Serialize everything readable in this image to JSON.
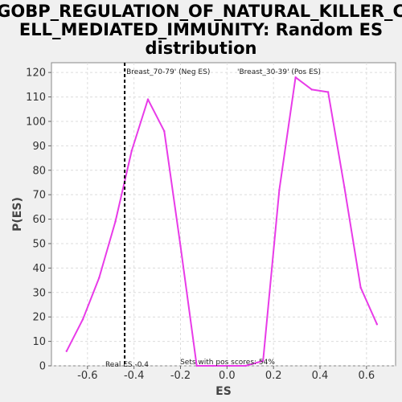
{
  "chart_data": {
    "type": "line",
    "title": "GOBP_REGULATION_OF_NATURAL_KILLER_CELL_MEDIATED_IMMUNITY: Random ES distribution",
    "title_lines": [
      "GOBP_REGULATION_OF_NATURAL_KILLER_C",
      "ELL_MEDIATED_IMMUNITY: Random ES",
      "distribution"
    ],
    "xlabel": "ES",
    "ylabel": "P(ES)",
    "xlim": [
      -0.755,
      0.725
    ],
    "ylim": [
      0,
      124
    ],
    "xticks": [
      -0.6,
      -0.4,
      -0.2,
      0.0,
      0.2,
      0.4,
      0.6
    ],
    "xtick_labels": [
      "-0.6",
      "-0.4",
      "-0.2",
      "0.0",
      "0.2",
      "0.4",
      "0.6"
    ],
    "yticks": [
      0,
      10,
      20,
      30,
      40,
      50,
      60,
      70,
      80,
      90,
      100,
      110,
      120
    ],
    "ytick_labels": [
      "0",
      "10",
      "20",
      "30",
      "40",
      "50",
      "60",
      "70",
      "80",
      "90",
      "100",
      "110",
      "120"
    ],
    "grid": true,
    "series": [
      {
        "color": "#e83be8",
        "x": [
          -0.69,
          -0.62,
          -0.55,
          -0.48,
          -0.41,
          -0.34,
          -0.27,
          -0.2,
          -0.13,
          -0.06,
          0.01,
          0.08,
          0.155,
          0.225,
          0.295,
          0.365,
          0.435,
          0.505,
          0.575,
          0.645
        ],
        "y": [
          6,
          19,
          36,
          59,
          88,
          109,
          96,
          49,
          0,
          0,
          0,
          0,
          2,
          72,
          118,
          113,
          112,
          73,
          32,
          17
        ]
      }
    ],
    "real_es": -0.44,
    "annotations": {
      "neg_label": "'Breast_70-79' (Neg ES)",
      "neg_color": "#1a1acc",
      "pos_label": "'Breast_30-39' (Pos ES)",
      "pos_color": "#cc1a1a",
      "real_es_label": "Real ES -0.4",
      "pos_scores_label": "Sets with pos scores: 54%"
    }
  }
}
